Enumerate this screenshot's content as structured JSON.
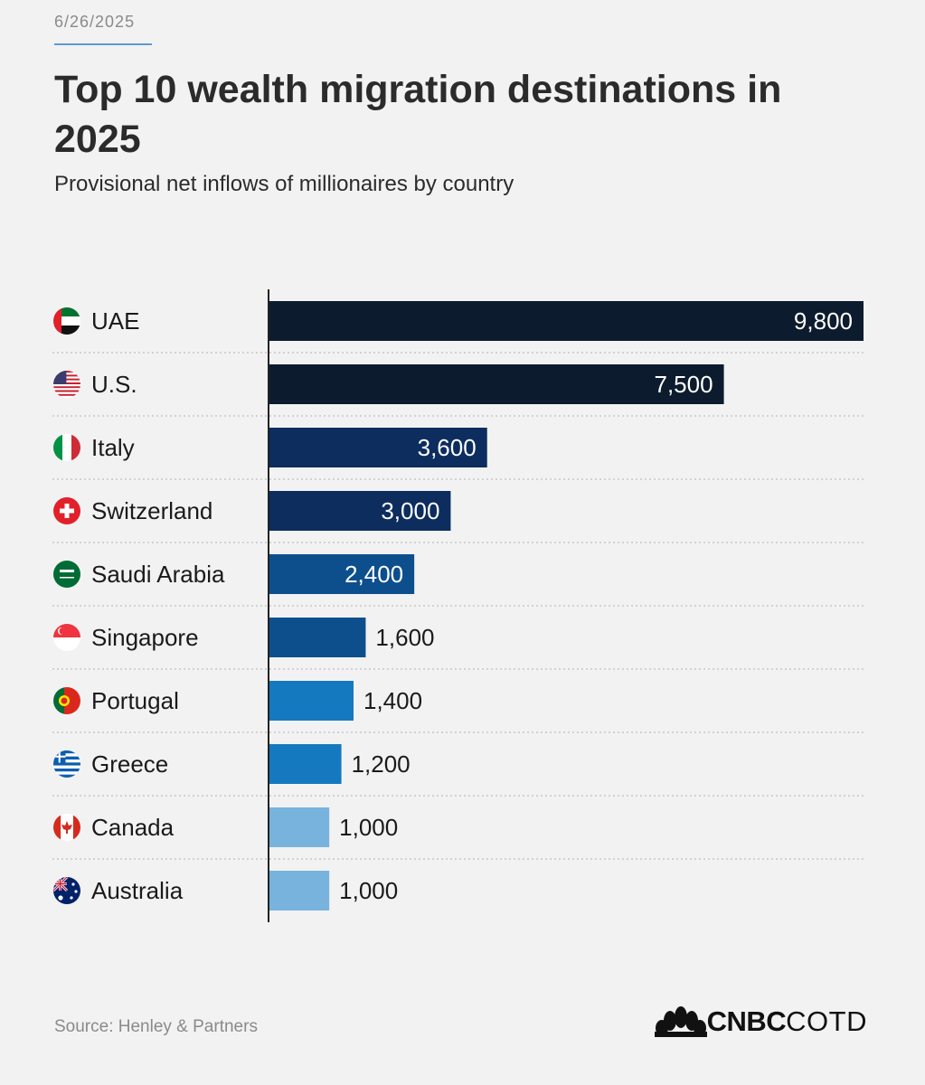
{
  "header": {
    "date": "6/26/2025"
  },
  "footer": {
    "source": "Source: Henley & Partners",
    "logo_main": "CNBC",
    "logo_suffix": "COTD"
  },
  "colors": {
    "background": "#f2f2f2",
    "darkest": "#0d1b2e",
    "dark_blue": "#0c2d5e",
    "mid_blue": "#0d4f8c",
    "blue": "#1479bf",
    "light_blue": "#77b3dd"
  },
  "chart_data": {
    "type": "bar",
    "orientation": "horizontal",
    "title": "Top 10 wealth migration destinations in 2025",
    "subtitle": "Provisional net inflows of millionaires by country",
    "categories": [
      "UAE",
      "U.S.",
      "Italy",
      "Switzerland",
      "Saudi Arabia",
      "Singapore",
      "Portugal",
      "Greece",
      "Canada",
      "Australia"
    ],
    "values": [
      9800,
      7500,
      3600,
      3000,
      2400,
      1600,
      1400,
      1200,
      1000,
      1000
    ],
    "value_labels": [
      "9,800",
      "7,500",
      "3,600",
      "3,000",
      "2,400",
      "1,600",
      "1,400",
      "1,200",
      "1,000",
      "1,000"
    ],
    "flag_icons": [
      "uae-flag-icon",
      "us-flag-icon",
      "italy-flag-icon",
      "switzerland-flag-icon",
      "saudi-arabia-flag-icon",
      "singapore-flag-icon",
      "portugal-flag-icon",
      "greece-flag-icon",
      "canada-flag-icon",
      "australia-flag-icon"
    ],
    "bar_colors": [
      "#0d1b2e",
      "#0d1b2e",
      "#0c2d5e",
      "#0c2d5e",
      "#0d4f8c",
      "#0d4f8c",
      "#1479bf",
      "#1479bf",
      "#77b3dd",
      "#77b3dd"
    ],
    "xlim": [
      0,
      9800
    ],
    "grid": false,
    "row_separators": "dotted"
  }
}
